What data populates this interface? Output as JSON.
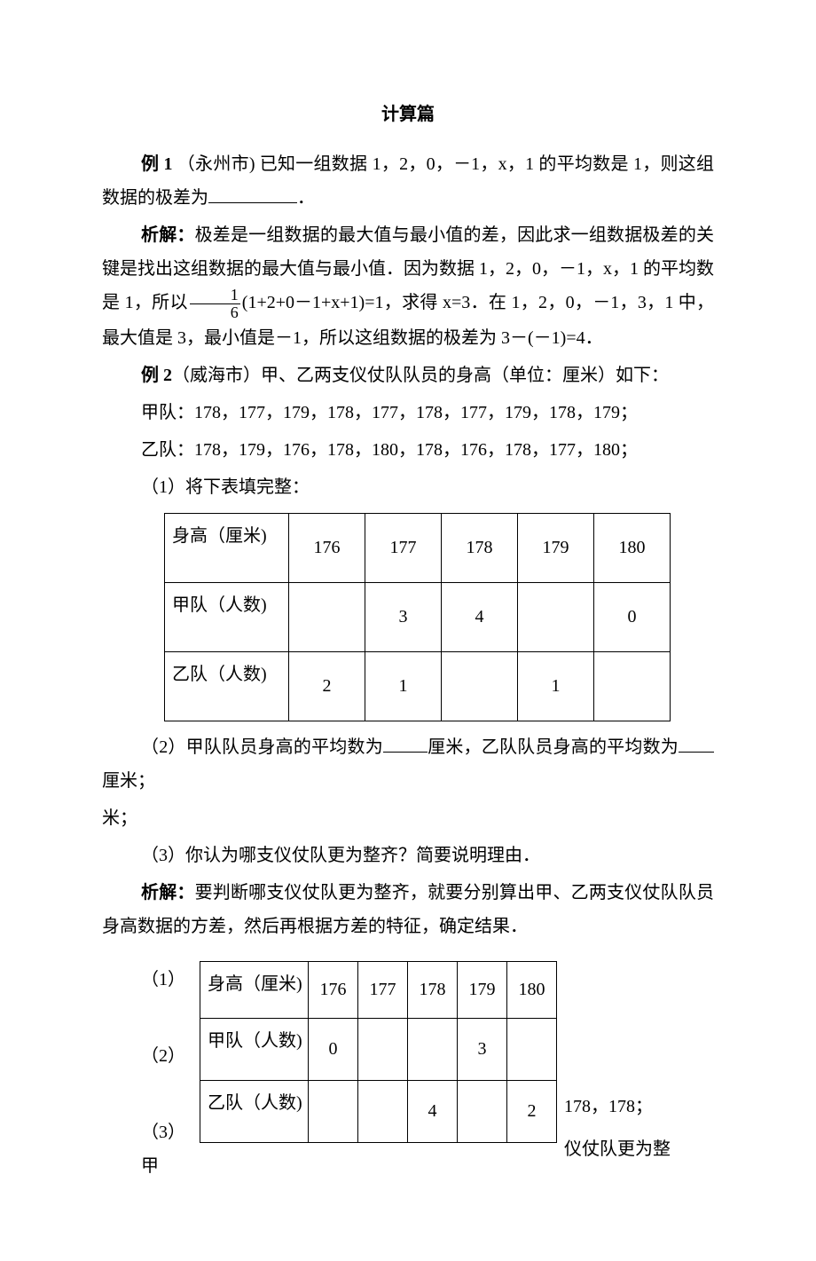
{
  "title": "计算篇",
  "ex1": {
    "label": "例 1",
    "src": "（永州市)",
    "t1": "已知一组数据 1，2，0，－1，x，1 的平均数是 1，则这组数据的极差为",
    "period": "．",
    "analysis_label": "析解：",
    "a1_1": "极差是一组数据的最大值与最小值的差，因此求一组数据极差的关键是找出这组数据的最大值与最小值．因为数据 1，2，0，－1，x，1 的平均数是 1，所以",
    "a1_2": "(1+2+0－1+x+1)=1，求得 x=3．在 1，2，0，－1，3，1 中，最大值是 3，最小值是－1，所以这组数据的极差为 3－(－1)=4．"
  },
  "ex2": {
    "label": "例 2",
    "src": "（威海市）",
    "t": "甲、乙两支仪仗队队员的身高（单位：厘米）如下：",
    "jia": "甲队：178，177，179，178，177，178，177，179，178，179；",
    "yi": "乙队：178，179，176，178，180，178，176，178，177，180；",
    "q1": "（1）将下表填完整：",
    "table1": {
      "h": [
        "身高（厘米)",
        "176",
        "177",
        "178",
        "179",
        "180"
      ],
      "r1": [
        "甲队（人数)",
        "",
        "3",
        "4",
        "",
        "0"
      ],
      "r2": [
        "乙队（人数)",
        "2",
        "1",
        "",
        "1",
        ""
      ]
    },
    "q2a": "（2）甲队队员身高的平均数为",
    "q2b": "厘米，乙队队员身高的平均数为",
    "q2c": "厘米；",
    "q3": "（3）你认为哪支仪仗队更为整齐？简要说明理由．",
    "analysis_label": "析解：",
    "ana": "要判断哪支仪仗队更为整齐，就要分别算出甲、乙两支仪仗队队员身高数据的方差，然后再根据方差的特征，确定结果．",
    "sub1": "（1）",
    "sub2": "（2）",
    "sub3": "（3）甲",
    "table2": {
      "h": [
        "身高（厘米)",
        "176",
        "177",
        "178",
        "179",
        "180"
      ],
      "r1": [
        "甲队（人数)",
        "0",
        "",
        "",
        "3",
        ""
      ],
      "r2": [
        "乙队（人数)",
        "",
        "",
        "4",
        "",
        "2"
      ]
    },
    "right1": "178，178；",
    "right2": "仪仗队更为整"
  },
  "frac": {
    "num": "1",
    "den": "6"
  }
}
